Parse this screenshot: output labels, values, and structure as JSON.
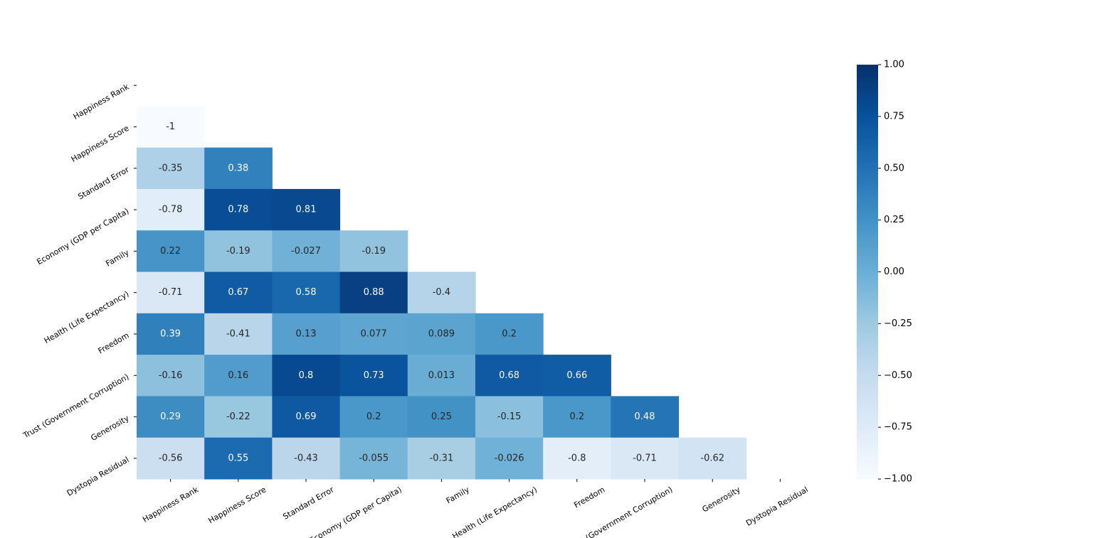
{
  "chart_data": {
    "type": "heatmap",
    "mask": "upper-triangle-including-diagonal",
    "rows": [
      "Happiness Rank",
      "Happiness Score",
      "Standard Error",
      "Economy (GDP per Capita)",
      "Family",
      "Health (Life Expectancy)",
      "Freedom",
      "Trust (Government Corruption)",
      "Generosity",
      "Dystopia Residual"
    ],
    "columns": [
      "Happiness Rank",
      "Happiness Score",
      "Standard Error",
      "Economy (GDP per Capita)",
      "Family",
      "Health (Life Expectancy)",
      "Freedom",
      "Trust (Government Corruption)",
      "Generosity",
      "Dystopia Residual"
    ],
    "cells": [
      {
        "row": 1,
        "col": 0,
        "value": -1,
        "label": "-1"
      },
      {
        "row": 2,
        "col": 0,
        "value": -0.35,
        "label": "-0.35"
      },
      {
        "row": 2,
        "col": 1,
        "value": 0.38,
        "label": "0.38"
      },
      {
        "row": 3,
        "col": 0,
        "value": -0.78,
        "label": "-0.78"
      },
      {
        "row": 3,
        "col": 1,
        "value": 0.78,
        "label": "0.78"
      },
      {
        "row": 3,
        "col": 2,
        "value": 0.81,
        "label": "0.81"
      },
      {
        "row": 4,
        "col": 0,
        "value": 0.22,
        "label": "0.22"
      },
      {
        "row": 4,
        "col": 1,
        "value": -0.19,
        "label": "-0.19"
      },
      {
        "row": 4,
        "col": 2,
        "value": -0.027,
        "label": "-0.027"
      },
      {
        "row": 4,
        "col": 3,
        "value": -0.19,
        "label": "-0.19"
      },
      {
        "row": 5,
        "col": 0,
        "value": -0.71,
        "label": "-0.71"
      },
      {
        "row": 5,
        "col": 1,
        "value": 0.67,
        "label": "0.67"
      },
      {
        "row": 5,
        "col": 2,
        "value": 0.58,
        "label": "0.58"
      },
      {
        "row": 5,
        "col": 3,
        "value": 0.88,
        "label": "0.88"
      },
      {
        "row": 5,
        "col": 4,
        "value": -0.4,
        "label": "-0.4"
      },
      {
        "row": 6,
        "col": 0,
        "value": 0.39,
        "label": "0.39"
      },
      {
        "row": 6,
        "col": 1,
        "value": -0.41,
        "label": "-0.41"
      },
      {
        "row": 6,
        "col": 2,
        "value": 0.13,
        "label": "0.13"
      },
      {
        "row": 6,
        "col": 3,
        "value": 0.077,
        "label": "0.077"
      },
      {
        "row": 6,
        "col": 4,
        "value": 0.089,
        "label": "0.089"
      },
      {
        "row": 6,
        "col": 5,
        "value": 0.2,
        "label": "0.2"
      },
      {
        "row": 7,
        "col": 0,
        "value": -0.16,
        "label": "-0.16"
      },
      {
        "row": 7,
        "col": 1,
        "value": 0.16,
        "label": "0.16"
      },
      {
        "row": 7,
        "col": 2,
        "value": 0.8,
        "label": "0.8"
      },
      {
        "row": 7,
        "col": 3,
        "value": 0.73,
        "label": "0.73"
      },
      {
        "row": 7,
        "col": 4,
        "value": 0.013,
        "label": "0.013"
      },
      {
        "row": 7,
        "col": 5,
        "value": 0.68,
        "label": "0.68"
      },
      {
        "row": 7,
        "col": 6,
        "value": 0.66,
        "label": "0.66"
      },
      {
        "row": 8,
        "col": 0,
        "value": 0.29,
        "label": "0.29"
      },
      {
        "row": 8,
        "col": 1,
        "value": -0.22,
        "label": "-0.22"
      },
      {
        "row": 8,
        "col": 2,
        "value": 0.69,
        "label": "0.69"
      },
      {
        "row": 8,
        "col": 3,
        "value": 0.2,
        "label": "0.2"
      },
      {
        "row": 8,
        "col": 4,
        "value": 0.25,
        "label": "0.25"
      },
      {
        "row": 8,
        "col": 5,
        "value": -0.15,
        "label": "-0.15"
      },
      {
        "row": 8,
        "col": 6,
        "value": 0.2,
        "label": "0.2"
      },
      {
        "row": 8,
        "col": 7,
        "value": 0.48,
        "label": "0.48"
      },
      {
        "row": 9,
        "col": 0,
        "value": -0.56,
        "label": "-0.56"
      },
      {
        "row": 9,
        "col": 1,
        "value": 0.55,
        "label": "0.55"
      },
      {
        "row": 9,
        "col": 2,
        "value": -0.43,
        "label": "-0.43"
      },
      {
        "row": 9,
        "col": 3,
        "value": -0.055,
        "label": "-0.055"
      },
      {
        "row": 9,
        "col": 4,
        "value": -0.31,
        "label": "-0.31"
      },
      {
        "row": 9,
        "col": 5,
        "value": -0.026,
        "label": "-0.026"
      },
      {
        "row": 9,
        "col": 6,
        "value": -0.8,
        "label": "-0.8"
      },
      {
        "row": 9,
        "col": 7,
        "value": -0.71,
        "label": "-0.71"
      },
      {
        "row": 9,
        "col": 8,
        "value": -0.62,
        "label": "-0.62"
      }
    ],
    "colorbar": {
      "colormap": "Blues",
      "vmin": -1,
      "vmax": 1,
      "ticks": [
        "1.00",
        "0.75",
        "0.50",
        "0.25",
        "0.00",
        "−0.25",
        "−0.50",
        "−0.75",
        "−1.00"
      ],
      "tick_values": [
        1,
        0.75,
        0.5,
        0.25,
        0,
        -0.25,
        -0.5,
        -0.75,
        -1
      ]
    },
    "colors": {
      "low": "#f7fbff",
      "high": "#08306b",
      "text_dark": "#262626",
      "text_light": "#ffffff"
    }
  }
}
